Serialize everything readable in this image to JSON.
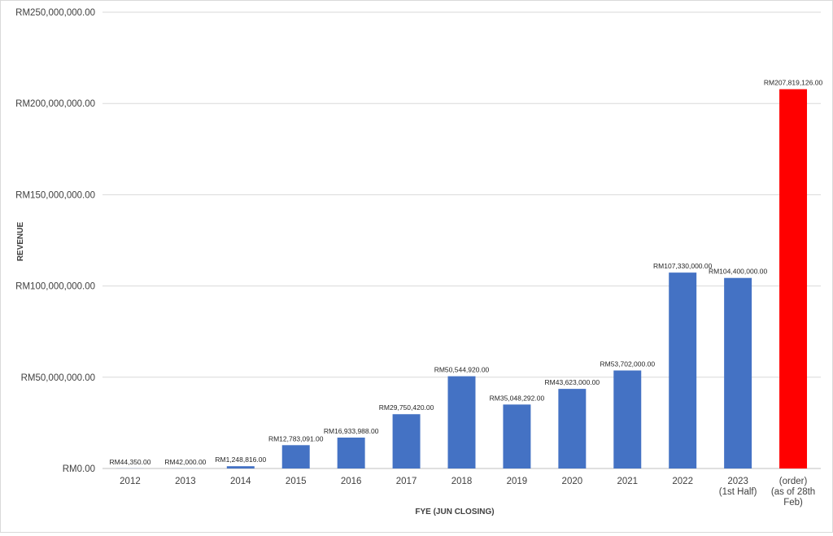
{
  "chart_data": {
    "type": "bar",
    "categories": [
      [
        "2012"
      ],
      [
        "2013"
      ],
      [
        "2014"
      ],
      [
        "2015"
      ],
      [
        "2016"
      ],
      [
        "2017"
      ],
      [
        "2018"
      ],
      [
        "2019"
      ],
      [
        "2020"
      ],
      [
        "2021"
      ],
      [
        "2022"
      ],
      [
        "2023",
        "(1st Half)"
      ],
      [
        "(order)",
        "(as of 28th",
        "Feb)"
      ]
    ],
    "values": [
      44350,
      42000,
      1248816,
      12783091,
      16933988,
      29750420,
      50544920,
      35048292,
      43623000,
      53702000,
      107330000,
      104400000,
      207819126
    ],
    "data_labels": [
      "RM44,350.00",
      "RM42,000.00",
      "RM1,248,816.00",
      "RM12,783,091.00",
      "RM16,933,988.00",
      "RM29,750,420.00",
      "RM50,544,920.00",
      "RM35,048,292.00",
      "RM43,623,000.00",
      "RM53,702,000.00",
      "RM107,330,000.00",
      "RM104,400,000.00",
      "RM207,819,126.00"
    ],
    "bar_colors": [
      "#4472c4",
      "#4472c4",
      "#4472c4",
      "#4472c4",
      "#4472c4",
      "#4472c4",
      "#4472c4",
      "#4472c4",
      "#4472c4",
      "#4472c4",
      "#4472c4",
      "#4472c4",
      "#ff0000"
    ],
    "label_colors": [
      "#262626",
      "#262626",
      "#262626",
      "#262626",
      "#262626",
      "#262626",
      "#262626",
      "#262626",
      "#262626",
      "#262626",
      "#262626",
      "#262626",
      "#ff0000"
    ],
    "xlabel": "FYE (JUN CLOSING)",
    "ylabel": "REVENUE",
    "ylim": [
      0,
      250000000
    ],
    "yticks": [
      0,
      50000000,
      100000000,
      150000000,
      200000000,
      250000000
    ],
    "ytick_labels": [
      "RM0.00",
      "RM50,000,000.00",
      "RM100,000,000.00",
      "RM150,000,000.00",
      "RM200,000,000.00",
      "RM250,000,000.00"
    ],
    "grid": true,
    "legend": "none"
  }
}
